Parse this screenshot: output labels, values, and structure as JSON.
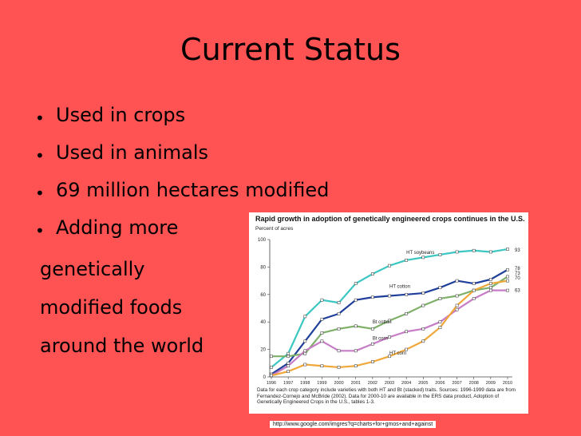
{
  "slide": {
    "title": "Current Status",
    "bullets": [
      "Used in crops",
      "Used in animals",
      "69 million hectares modified",
      "Adding more"
    ],
    "continuation": [
      "genetically",
      "modified foods",
      "around the world"
    ],
    "source_url": "http://www.google.com/imgres?q=charts+for+gmos+and+against"
  },
  "chart_data": {
    "type": "line",
    "title": "Rapid growth in adoption of genetically engineered crops continues in the U.S.",
    "ylabel": "Percent of acres",
    "xlabel": "",
    "x": [
      "1996",
      "1997",
      "1998",
      "1999",
      "2000",
      "2001",
      "2002",
      "2003",
      "2004",
      "2005",
      "2006",
      "2007",
      "2008",
      "2009",
      "2010"
    ],
    "ylim": [
      0,
      100
    ],
    "yticks": [
      0,
      20,
      40,
      60,
      80,
      100
    ],
    "grid": false,
    "series": [
      {
        "name": "HT soybeans",
        "color": "#3cc7c2",
        "end_label": "93",
        "values": [
          7,
          17,
          44,
          56,
          54,
          68,
          75,
          81,
          85,
          87,
          89,
          91,
          92,
          91,
          93
        ]
      },
      {
        "name": "HT cotton",
        "color": "#1f3f9a",
        "end_label": "78",
        "values": [
          2,
          10,
          26,
          42,
          46,
          56,
          58,
          59,
          60,
          61,
          65,
          70,
          68,
          71,
          78
        ]
      },
      {
        "name": "Bt cotton",
        "color": "#7fb06a",
        "end_label": "73",
        "values": [
          15,
          15,
          17,
          32,
          35,
          37,
          35,
          41,
          46,
          52,
          57,
          59,
          63,
          65,
          73
        ]
      },
      {
        "name": "Bt corn",
        "color": "#c67dc6",
        "end_label": "63",
        "values": [
          1,
          8,
          19,
          26,
          19,
          19,
          24,
          29,
          33,
          35,
          40,
          49,
          57,
          63,
          63
        ]
      },
      {
        "name": "HT corn",
        "color": "#f0a83a",
        "end_label": "70",
        "values": [
          1,
          4,
          9,
          8,
          7,
          8,
          11,
          15,
          20,
          26,
          36,
          52,
          63,
          68,
          70
        ]
      }
    ],
    "notes": "Data for each crop category include varieties with both HT and Bt (stacked) traits. Sources: 1996-1999 data are from Fernandez-Cornejo and McBride (2002). Data for 2000-10 are available in the ERS data product, Adoption of Genetically Engineered Crops in the U.S., tables 1-3."
  }
}
